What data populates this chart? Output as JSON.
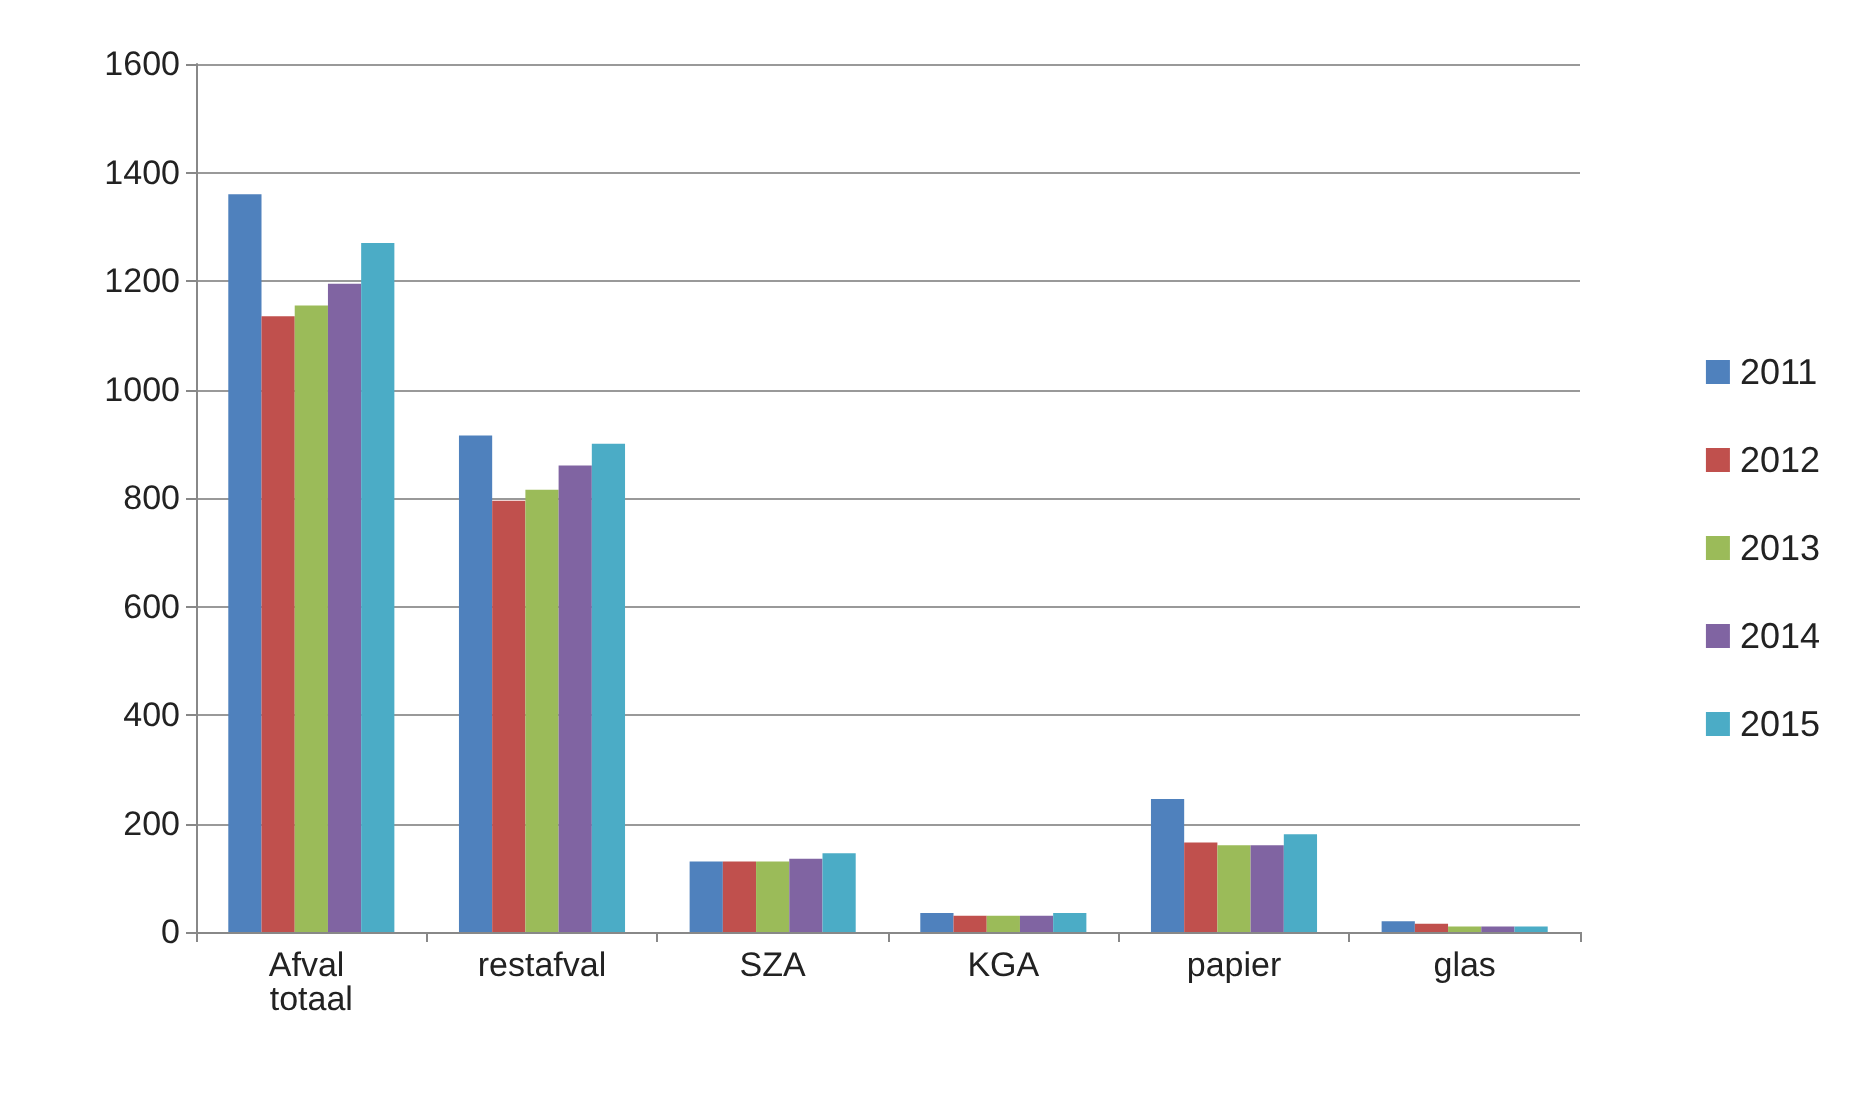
{
  "chart_data": {
    "type": "bar",
    "categories": [
      "Afval totaal",
      "restafval",
      "SZA",
      "KGA",
      "papier",
      "glas"
    ],
    "series": [
      {
        "name": "2011",
        "color": "#4f81bd",
        "values": [
          1360,
          915,
          130,
          35,
          245,
          20
        ]
      },
      {
        "name": "2012",
        "color": "#c0504d",
        "values": [
          1135,
          795,
          130,
          30,
          165,
          15
        ]
      },
      {
        "name": "2013",
        "color": "#9bbb59",
        "values": [
          1155,
          815,
          130,
          30,
          160,
          10
        ]
      },
      {
        "name": "2014",
        "color": "#8064a2",
        "values": [
          1195,
          860,
          135,
          30,
          160,
          10
        ]
      },
      {
        "name": "2015",
        "color": "#4bacc6",
        "values": [
          1270,
          900,
          145,
          35,
          180,
          10
        ]
      }
    ],
    "ylim": [
      0,
      1600
    ],
    "yticks": [
      0,
      200,
      400,
      600,
      800,
      1000,
      1200,
      1400,
      1600
    ],
    "grid": "y",
    "legend": "right"
  }
}
